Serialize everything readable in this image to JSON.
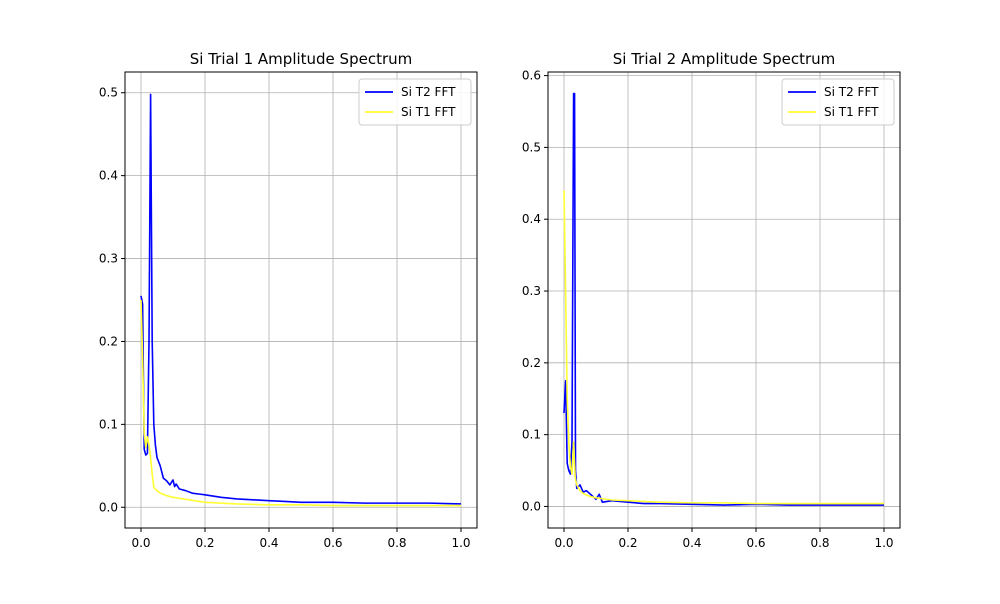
{
  "chart_data": [
    {
      "type": "line",
      "title": "Si Trial 1 Amplitude Spectrum",
      "xlabel": "",
      "ylabel": "",
      "xlim": [
        -0.05,
        1.05
      ],
      "ylim": [
        -0.025,
        0.525
      ],
      "xticks": [
        0.0,
        0.2,
        0.4,
        0.6,
        0.8,
        1.0
      ],
      "xtick_labels": [
        "0.0",
        "0.2",
        "0.4",
        "0.6",
        "0.8",
        "1.0"
      ],
      "yticks": [
        0.0,
        0.1,
        0.2,
        0.3,
        0.4,
        0.5
      ],
      "ytick_labels": [
        "0.0",
        "0.1",
        "0.2",
        "0.3",
        "0.4",
        "0.5"
      ],
      "grid": true,
      "legend_position": "top-right",
      "series": [
        {
          "name": "Si T2 FFT",
          "color": "#0000ff",
          "x": [
            0.0,
            0.005,
            0.01,
            0.015,
            0.02,
            0.025,
            0.03,
            0.035,
            0.04,
            0.045,
            0.05,
            0.06,
            0.07,
            0.08,
            0.09,
            0.1,
            0.105,
            0.11,
            0.12,
            0.14,
            0.16,
            0.18,
            0.2,
            0.25,
            0.3,
            0.35,
            0.4,
            0.45,
            0.5,
            0.6,
            0.7,
            0.8,
            0.9,
            1.0
          ],
          "y": [
            0.255,
            0.245,
            0.07,
            0.063,
            0.065,
            0.2,
            0.498,
            0.2,
            0.1,
            0.075,
            0.06,
            0.05,
            0.035,
            0.032,
            0.027,
            0.033,
            0.025,
            0.028,
            0.022,
            0.02,
            0.017,
            0.016,
            0.015,
            0.012,
            0.01,
            0.009,
            0.008,
            0.007,
            0.006,
            0.006,
            0.005,
            0.005,
            0.005,
            0.004
          ]
        },
        {
          "name": "Si T1 FFT",
          "color": "#ffff33",
          "x": [
            0.0,
            0.005,
            0.01,
            0.015,
            0.02,
            0.025,
            0.03,
            0.035,
            0.04,
            0.05,
            0.06,
            0.08,
            0.1,
            0.15,
            0.2,
            0.3,
            0.4,
            0.5,
            0.6,
            0.7,
            0.8,
            0.9,
            1.0
          ],
          "y": [
            0.25,
            0.18,
            0.09,
            0.072,
            0.085,
            0.075,
            0.06,
            0.04,
            0.024,
            0.02,
            0.017,
            0.014,
            0.012,
            0.009,
            0.006,
            0.004,
            0.003,
            0.003,
            0.002,
            0.002,
            0.002,
            0.002,
            0.002
          ]
        }
      ]
    },
    {
      "type": "line",
      "title": "Si Trial 2 Amplitude Spectrum",
      "xlabel": "",
      "ylabel": "",
      "xlim": [
        -0.05,
        1.05
      ],
      "ylim": [
        -0.03,
        0.605
      ],
      "xticks": [
        0.0,
        0.2,
        0.4,
        0.6,
        0.8,
        1.0
      ],
      "xtick_labels": [
        "0.0",
        "0.2",
        "0.4",
        "0.6",
        "0.8",
        "1.0"
      ],
      "yticks": [
        0.0,
        0.1,
        0.2,
        0.3,
        0.4,
        0.5,
        0.6
      ],
      "ytick_labels": [
        "0.0",
        "0.1",
        "0.2",
        "0.3",
        "0.4",
        "0.5",
        "0.6"
      ],
      "grid": true,
      "legend_position": "top-right",
      "series": [
        {
          "name": "Si T2 FFT",
          "color": "#0000ff",
          "x": [
            0.0,
            0.005,
            0.01,
            0.015,
            0.02,
            0.025,
            0.03,
            0.033,
            0.036,
            0.04,
            0.05,
            0.06,
            0.07,
            0.08,
            0.1,
            0.11,
            0.12,
            0.15,
            0.2,
            0.25,
            0.3,
            0.4,
            0.5,
            0.6,
            0.7,
            0.8,
            0.9,
            1.0
          ],
          "y": [
            0.13,
            0.175,
            0.06,
            0.05,
            0.045,
            0.09,
            0.575,
            0.575,
            0.05,
            0.025,
            0.03,
            0.02,
            0.022,
            0.018,
            0.01,
            0.017,
            0.006,
            0.008,
            0.006,
            0.004,
            0.004,
            0.003,
            0.002,
            0.003,
            0.002,
            0.002,
            0.002,
            0.002
          ]
        },
        {
          "name": "Si T1 FFT",
          "color": "#ffff33",
          "x": [
            0.0,
            0.005,
            0.01,
            0.015,
            0.02,
            0.025,
            0.03,
            0.035,
            0.04,
            0.05,
            0.06,
            0.08,
            0.1,
            0.15,
            0.2,
            0.3,
            0.4,
            0.5,
            0.6,
            0.7,
            0.8,
            0.9,
            1.0
          ],
          "y": [
            0.44,
            0.3,
            0.15,
            0.09,
            0.055,
            0.045,
            0.09,
            0.04,
            0.03,
            0.022,
            0.018,
            0.014,
            0.012,
            0.009,
            0.008,
            0.006,
            0.005,
            0.005,
            0.004,
            0.004,
            0.004,
            0.004,
            0.004
          ]
        }
      ]
    }
  ]
}
